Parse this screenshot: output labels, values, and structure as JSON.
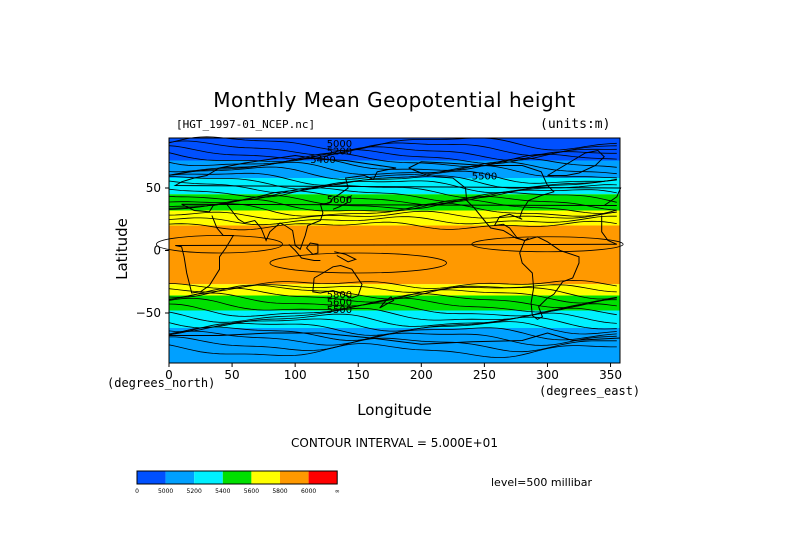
{
  "chart_data": {
    "type": "heatmap",
    "title": "Monthly Mean Geopotential height",
    "file_label": "[HGT_1997-01_NCEP.nc]",
    "units_label": "(units:m)",
    "xlabel": "Longitude",
    "ylabel": "Latitude",
    "x_unit_label": "(degrees_east)",
    "y_unit_label": "(degrees_north)",
    "xlim": [
      0,
      357.5
    ],
    "ylim": [
      -90,
      90
    ],
    "x_ticks": [
      0,
      50,
      100,
      150,
      200,
      250,
      300,
      350
    ],
    "y_ticks": [
      50,
      0,
      -50
    ],
    "y_tick_labels": [
      "50",
      "0",
      "−50"
    ],
    "contour_interval_text": "CONTOUR INTERVAL = 5.000E+01",
    "level_text": "level=500 millibar",
    "contour_labels": [
      "5000",
      "5200",
      "5400",
      "5500",
      "5600",
      "5800"
    ],
    "colorbar": {
      "colors": [
        "#0050ff",
        "#00a0ff",
        "#00f0ff",
        "#00e000",
        "#ffff00",
        "#ff9900",
        "#ff0000"
      ],
      "labels": [
        "0",
        "5000",
        "5200",
        "5400",
        "5600",
        "5800",
        "6000",
        "∞"
      ]
    },
    "bands": [
      {
        "lat_min": 72,
        "lat_max": 90,
        "class": 0
      },
      {
        "lat_min": 58,
        "lat_max": 72,
        "class": 1
      },
      {
        "lat_min": 45,
        "lat_max": 58,
        "class": 2
      },
      {
        "lat_min": 32,
        "lat_max": 45,
        "class": 3
      },
      {
        "lat_min": 20,
        "lat_max": 32,
        "class": 4
      },
      {
        "lat_min": -27,
        "lat_max": 20,
        "class": 5
      },
      {
        "lat_min": -36,
        "lat_max": -27,
        "class": 4
      },
      {
        "lat_min": -48,
        "lat_max": -36,
        "class": 3
      },
      {
        "lat_min": -62,
        "lat_max": -48,
        "class": 2
      },
      {
        "lat_min": -90,
        "lat_max": -62,
        "class": 1
      }
    ]
  }
}
